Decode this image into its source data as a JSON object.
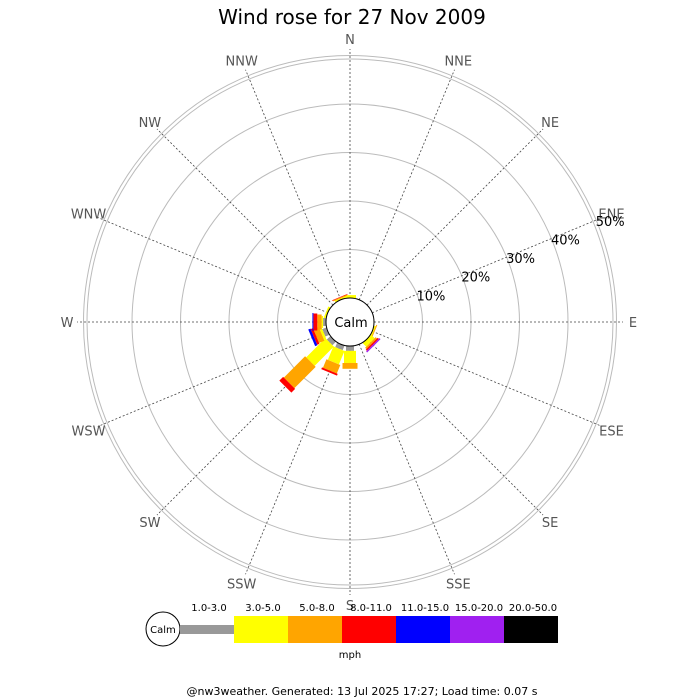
{
  "chart_data": {
    "type": "wind-rose",
    "title": "Wind rose for 27 Nov 2009",
    "directions": [
      "N",
      "NNE",
      "NE",
      "ENE",
      "E",
      "ESE",
      "SE",
      "SSE",
      "S",
      "SSW",
      "SW",
      "WSW",
      "W",
      "WNW",
      "NW",
      "NNW"
    ],
    "ring_labels": [
      "10%",
      "20%",
      "30%",
      "40%",
      "50%"
    ],
    "ring_values": [
      10,
      20,
      30,
      40,
      50
    ],
    "center_label": "Calm",
    "unit": "mph",
    "bins": [
      {
        "label": "1.0-3.0",
        "color": "#999999"
      },
      {
        "label": "3.0-5.0",
        "color": "#ffff00"
      },
      {
        "label": "5.0-8.0",
        "color": "#ffa500"
      },
      {
        "label": "8.0-11.0",
        "color": "#ff0000"
      },
      {
        "label": "11.0-15.0",
        "color": "#0000ff"
      },
      {
        "label": "15.0-20.0",
        "color": "#a020f0"
      },
      {
        "label": "20.0-50.0",
        "color": "#000000"
      }
    ],
    "legend_calm_label": "Calm",
    "series": [
      {
        "direction": "N",
        "values": [
          0,
          0.6,
          0,
          0,
          0,
          0,
          0
        ]
      },
      {
        "direction": "NNE",
        "values": [
          0,
          0,
          0,
          0,
          0,
          0,
          0
        ]
      },
      {
        "direction": "NE",
        "values": [
          0,
          0,
          0,
          0,
          0,
          0,
          0
        ]
      },
      {
        "direction": "ENE",
        "values": [
          0,
          0,
          0,
          0,
          0,
          0,
          0
        ]
      },
      {
        "direction": "E",
        "values": [
          0,
          0,
          0,
          0,
          0,
          0,
          0
        ]
      },
      {
        "direction": "ESE",
        "values": [
          0,
          0.3,
          0.2,
          0,
          0,
          0,
          0
        ]
      },
      {
        "direction": "SE",
        "values": [
          0,
          1.0,
          0.4,
          0.3,
          0,
          0.3,
          0
        ]
      },
      {
        "direction": "SSE",
        "values": [
          0,
          0,
          0,
          0,
          0,
          0,
          0
        ]
      },
      {
        "direction": "S",
        "values": [
          1.0,
          2.5,
          1.2,
          0,
          0,
          0,
          0
        ]
      },
      {
        "direction": "SSW",
        "values": [
          1.0,
          3.0,
          1.9,
          0.4,
          0,
          0,
          0
        ]
      },
      {
        "direction": "SW",
        "values": [
          1.0,
          5.6,
          6.2,
          1.1,
          0,
          0,
          0
        ]
      },
      {
        "direction": "WSW",
        "values": [
          0.9,
          0.5,
          1.2,
          0.5,
          0.5,
          0,
          0
        ]
      },
      {
        "direction": "W",
        "values": [
          0.6,
          0.3,
          0.9,
          0.8,
          0.2,
          0,
          0
        ]
      },
      {
        "direction": "WNW",
        "values": [
          0,
          0.4,
          0,
          0,
          0,
          0,
          0
        ]
      },
      {
        "direction": "NW",
        "values": [
          0,
          0,
          0,
          0,
          0,
          0,
          0
        ]
      },
      {
        "direction": "NNW",
        "values": [
          0,
          0.3,
          0.2,
          0.1,
          0,
          0,
          0
        ]
      }
    ]
  },
  "footer": "@nw3weather. Generated: 13 Jul 2025 17:27; Load time: 0.07 s"
}
